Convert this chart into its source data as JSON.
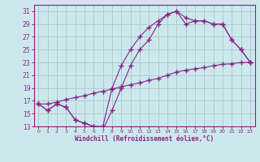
{
  "xlabel": "Windchill (Refroidissement éolien,°C)",
  "bg_color": "#cce8ec",
  "grid_color": "#aaccd4",
  "line_color": "#882288",
  "xlim": [
    -0.5,
    23.5
  ],
  "ylim": [
    13,
    32
  ],
  "xticks": [
    0,
    1,
    2,
    3,
    4,
    5,
    6,
    7,
    8,
    9,
    10,
    11,
    12,
    13,
    14,
    15,
    16,
    17,
    18,
    19,
    20,
    21,
    22,
    23
  ],
  "yticks": [
    13,
    15,
    17,
    19,
    21,
    23,
    25,
    27,
    29,
    31
  ],
  "curve1_x": [
    0,
    1,
    2,
    3,
    4,
    5,
    6,
    7,
    8,
    9,
    10,
    11,
    12,
    13,
    14,
    15,
    16,
    17,
    18,
    19,
    20,
    21,
    22,
    23
  ],
  "curve1_y": [
    16.5,
    15.5,
    16.5,
    16.0,
    14.0,
    13.5,
    13.0,
    13.0,
    19.0,
    22.5,
    25.0,
    27.0,
    28.5,
    29.5,
    30.5,
    31.0,
    30.0,
    29.5,
    29.5,
    29.0,
    29.0,
    26.5,
    25.0,
    23.0
  ],
  "curve2_x": [
    0,
    1,
    2,
    3,
    4,
    5,
    6,
    7,
    8,
    9,
    10,
    11,
    12,
    13,
    14,
    15,
    16,
    17,
    18,
    19,
    20,
    21,
    22,
    23
  ],
  "curve2_y": [
    16.5,
    16.5,
    16.8,
    17.2,
    17.5,
    17.8,
    18.2,
    18.5,
    18.8,
    19.2,
    19.5,
    19.8,
    20.2,
    20.5,
    21.0,
    21.5,
    21.8,
    22.0,
    22.2,
    22.5,
    22.7,
    22.8,
    23.0,
    23.0
  ],
  "curve3_x": [
    0,
    1,
    2,
    3,
    4,
    5,
    6,
    7,
    8,
    9,
    10,
    11,
    12,
    13,
    14,
    15,
    16,
    17,
    18,
    19,
    20,
    21,
    22,
    23
  ],
  "curve3_y": [
    16.5,
    15.5,
    16.5,
    16.0,
    14.0,
    13.5,
    13.0,
    12.5,
    15.5,
    19.0,
    22.5,
    25.0,
    26.5,
    29.0,
    30.5,
    31.0,
    29.0,
    29.5,
    29.5,
    29.0,
    29.0,
    26.5,
    25.0,
    23.0
  ]
}
